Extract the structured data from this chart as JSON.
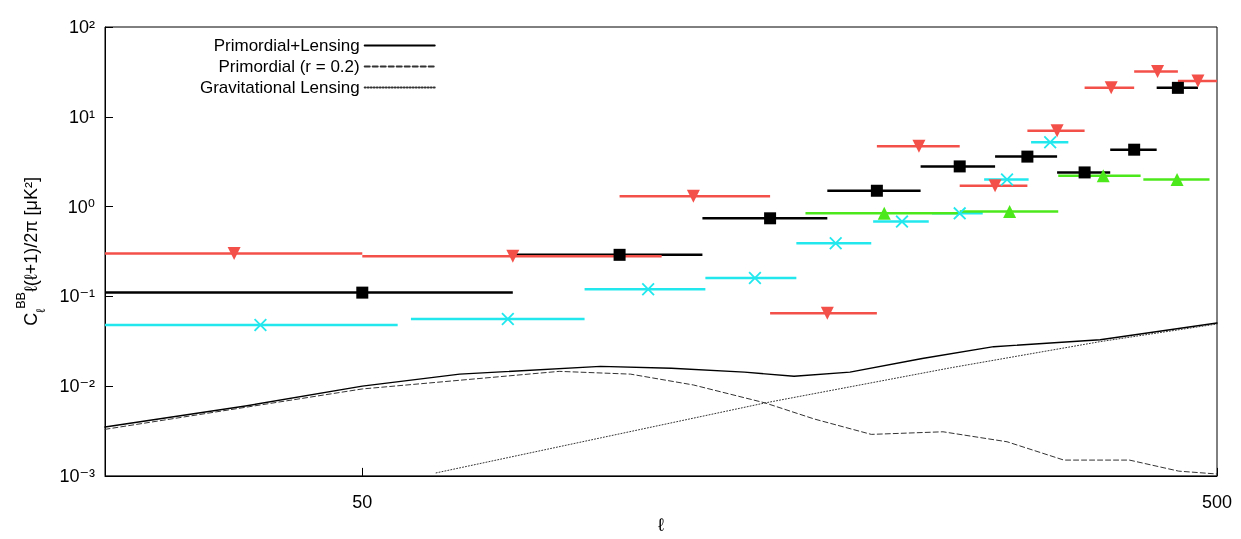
{
  "chart_data": {
    "type": "scatter",
    "xlabel": "ℓ",
    "ylabel": "C$_{ℓ}$$^{BB}$ℓ(ℓ+1)/2π [μK²]",
    "log": "xy",
    "legend": "top left",
    "xlim": [
      25,
      500
    ],
    "xticks": [
      50,
      500
    ],
    "ylim": [
      0.001,
      100
    ],
    "yticks": [
      {
        "value": 0.001,
        "label": "10⁻³"
      },
      {
        "value": 0.01,
        "label": "10⁻²"
      },
      {
        "value": 0.1,
        "label": "10⁻¹"
      },
      {
        "value": 1,
        "label": "10⁰"
      },
      {
        "value": 10,
        "label": "10¹"
      },
      {
        "value": 100,
        "label": "10²"
      }
    ],
    "series": [
      {
        "type": "line",
        "name": "Primordial+Lensing",
        "color": "#000000",
        "marker": "none",
        "line_style": "solid",
        "x": [
          25,
          36.5,
          50,
          65,
          95,
          115,
          140,
          160,
          186,
          226,
          274,
          365,
          500
        ],
        "values": [
          0.0035,
          0.006,
          0.01,
          0.0136,
          0.0166,
          0.0158,
          0.0143,
          0.0129,
          0.0143,
          0.0203,
          0.0275,
          0.0328,
          0.0505
        ]
      },
      {
        "type": "line",
        "name": "Primordial (r = 0.2)",
        "color": "#333333",
        "marker": "none",
        "line_style": "dashed",
        "x": [
          25,
          50,
          85,
          103,
          122,
          148,
          169,
          197,
          239,
          284,
          331,
          395,
          451,
          500
        ],
        "values": [
          0.0033,
          0.0093,
          0.0146,
          0.0136,
          0.0103,
          0.0065,
          0.0043,
          0.0029,
          0.0031,
          0.0024,
          0.0015,
          0.0015,
          0.00113,
          0.00105
        ]
      },
      {
        "type": "line",
        "name": "Gravitational Lensing",
        "color": "#333333",
        "marker": "none",
        "line_style": "dotted",
        "x": [
          61,
          95,
          148,
          244,
          365,
          500
        ],
        "values": [
          0.00108,
          0.00265,
          0.0065,
          0.016,
          0.0313,
          0.0492
        ]
      },
      {
        "color": "#000000",
        "marker": "square",
        "x": [
          50,
          100,
          150,
          200,
          250,
          300,
          350,
          400,
          450
        ],
        "values": [
          0.11,
          0.29,
          0.74,
          1.5,
          2.8,
          3.6,
          2.4,
          4.3,
          21
        ],
        "xerrors": [
          [
            25,
            75
          ],
          [
            75,
            125
          ],
          [
            125,
            175
          ],
          [
            175,
            225
          ],
          [
            225,
            275
          ],
          [
            275,
            325
          ],
          [
            325,
            375
          ],
          [
            375,
            425
          ],
          [
            425,
            475
          ]
        ]
      },
      {
        "color": "#f4504a",
        "marker": "triangle-down",
        "x": [
          35.4,
          75,
          122,
          175,
          224,
          275,
          325,
          376,
          426,
          475
        ],
        "values": [
          0.3,
          0.28,
          1.3,
          0.065,
          4.7,
          1.7,
          7.0,
          21,
          32,
          25
        ],
        "xerrors": [
          [
            25,
            50
          ],
          [
            50,
            112
          ],
          [
            100,
            150
          ],
          [
            150,
            200
          ],
          [
            200,
            250
          ],
          [
            250,
            300
          ],
          [
            300,
            350
          ],
          [
            350,
            400
          ],
          [
            400,
            450
          ],
          [
            450,
            500
          ]
        ]
      },
      {
        "color": "#22e8ee",
        "marker": "cross",
        "x": [
          38,
          74,
          108,
          144,
          179,
          214,
          250,
          284,
          319
        ],
        "values": [
          0.048,
          0.056,
          0.12,
          0.16,
          0.39,
          0.68,
          0.84,
          2.0,
          5.2
        ],
        "xerrors": [
          [
            25,
            55
          ],
          [
            57,
            91
          ],
          [
            91,
            126
          ],
          [
            126,
            161
          ],
          [
            161,
            197
          ],
          [
            198,
            230
          ],
          [
            232,
            266
          ],
          [
            267,
            301
          ],
          [
            303,
            335
          ]
        ]
      },
      {
        "color": "#4de81c",
        "marker": "triangle",
        "x": [
          204,
          286,
          368,
          449
        ],
        "values": [
          0.84,
          0.88,
          2.2,
          2.0
        ],
        "xerrors": [
          [
            165,
            250
          ],
          [
            250,
            326
          ],
          [
            326,
            407
          ],
          [
            410,
            490
          ]
        ]
      }
    ]
  }
}
